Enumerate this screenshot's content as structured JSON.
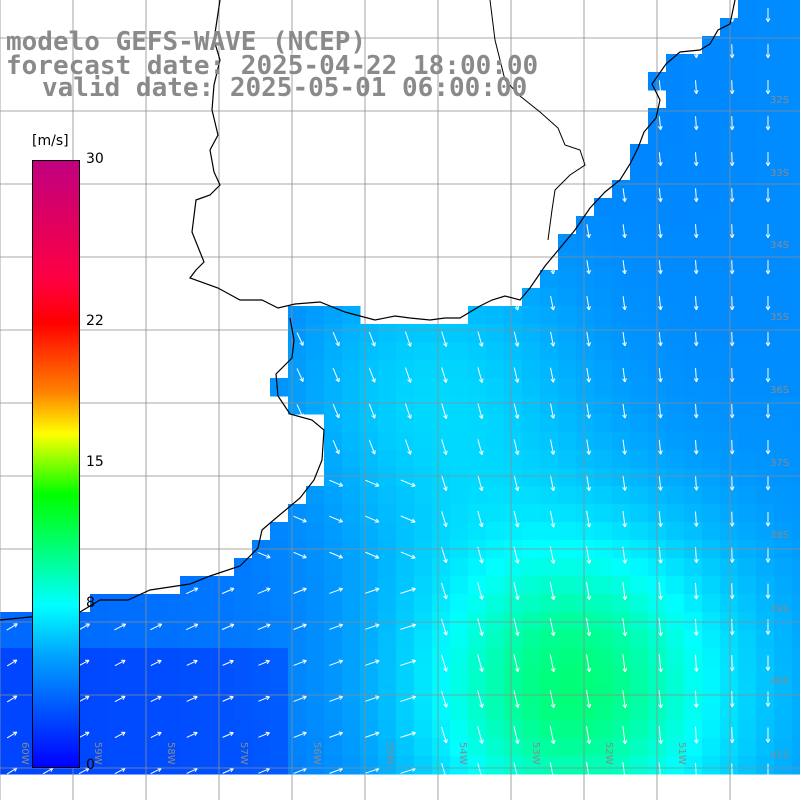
{
  "title": {
    "line1": "modelo GEFS-WAVE (NCEP)",
    "line2": "forecast date: 2025-04-22 18:00:00",
    "line3": "valid date: 2025-05-01 06:00:00"
  },
  "colorbar": {
    "unit": "[m/s]",
    "min": 0,
    "max": 30,
    "tick_labels": [
      "30",
      "22",
      "15",
      "8",
      "0"
    ],
    "tick_values": [
      30,
      22,
      15,
      8,
      0
    ]
  },
  "lat_labels": [
    "32S",
    "33S",
    "34S",
    "35S",
    "36S",
    "37S",
    "38S",
    "39S",
    "40S",
    "41S"
  ],
  "lon_labels": [
    "60W",
    "59W",
    "58W",
    "57W",
    "56W",
    "55W",
    "54W",
    "53W",
    "52W",
    "51W"
  ],
  "colors": {
    "land": "#ffffff",
    "grid": "#8c8c8c",
    "arrow": "#ffffff",
    "coast": "#000000"
  }
}
